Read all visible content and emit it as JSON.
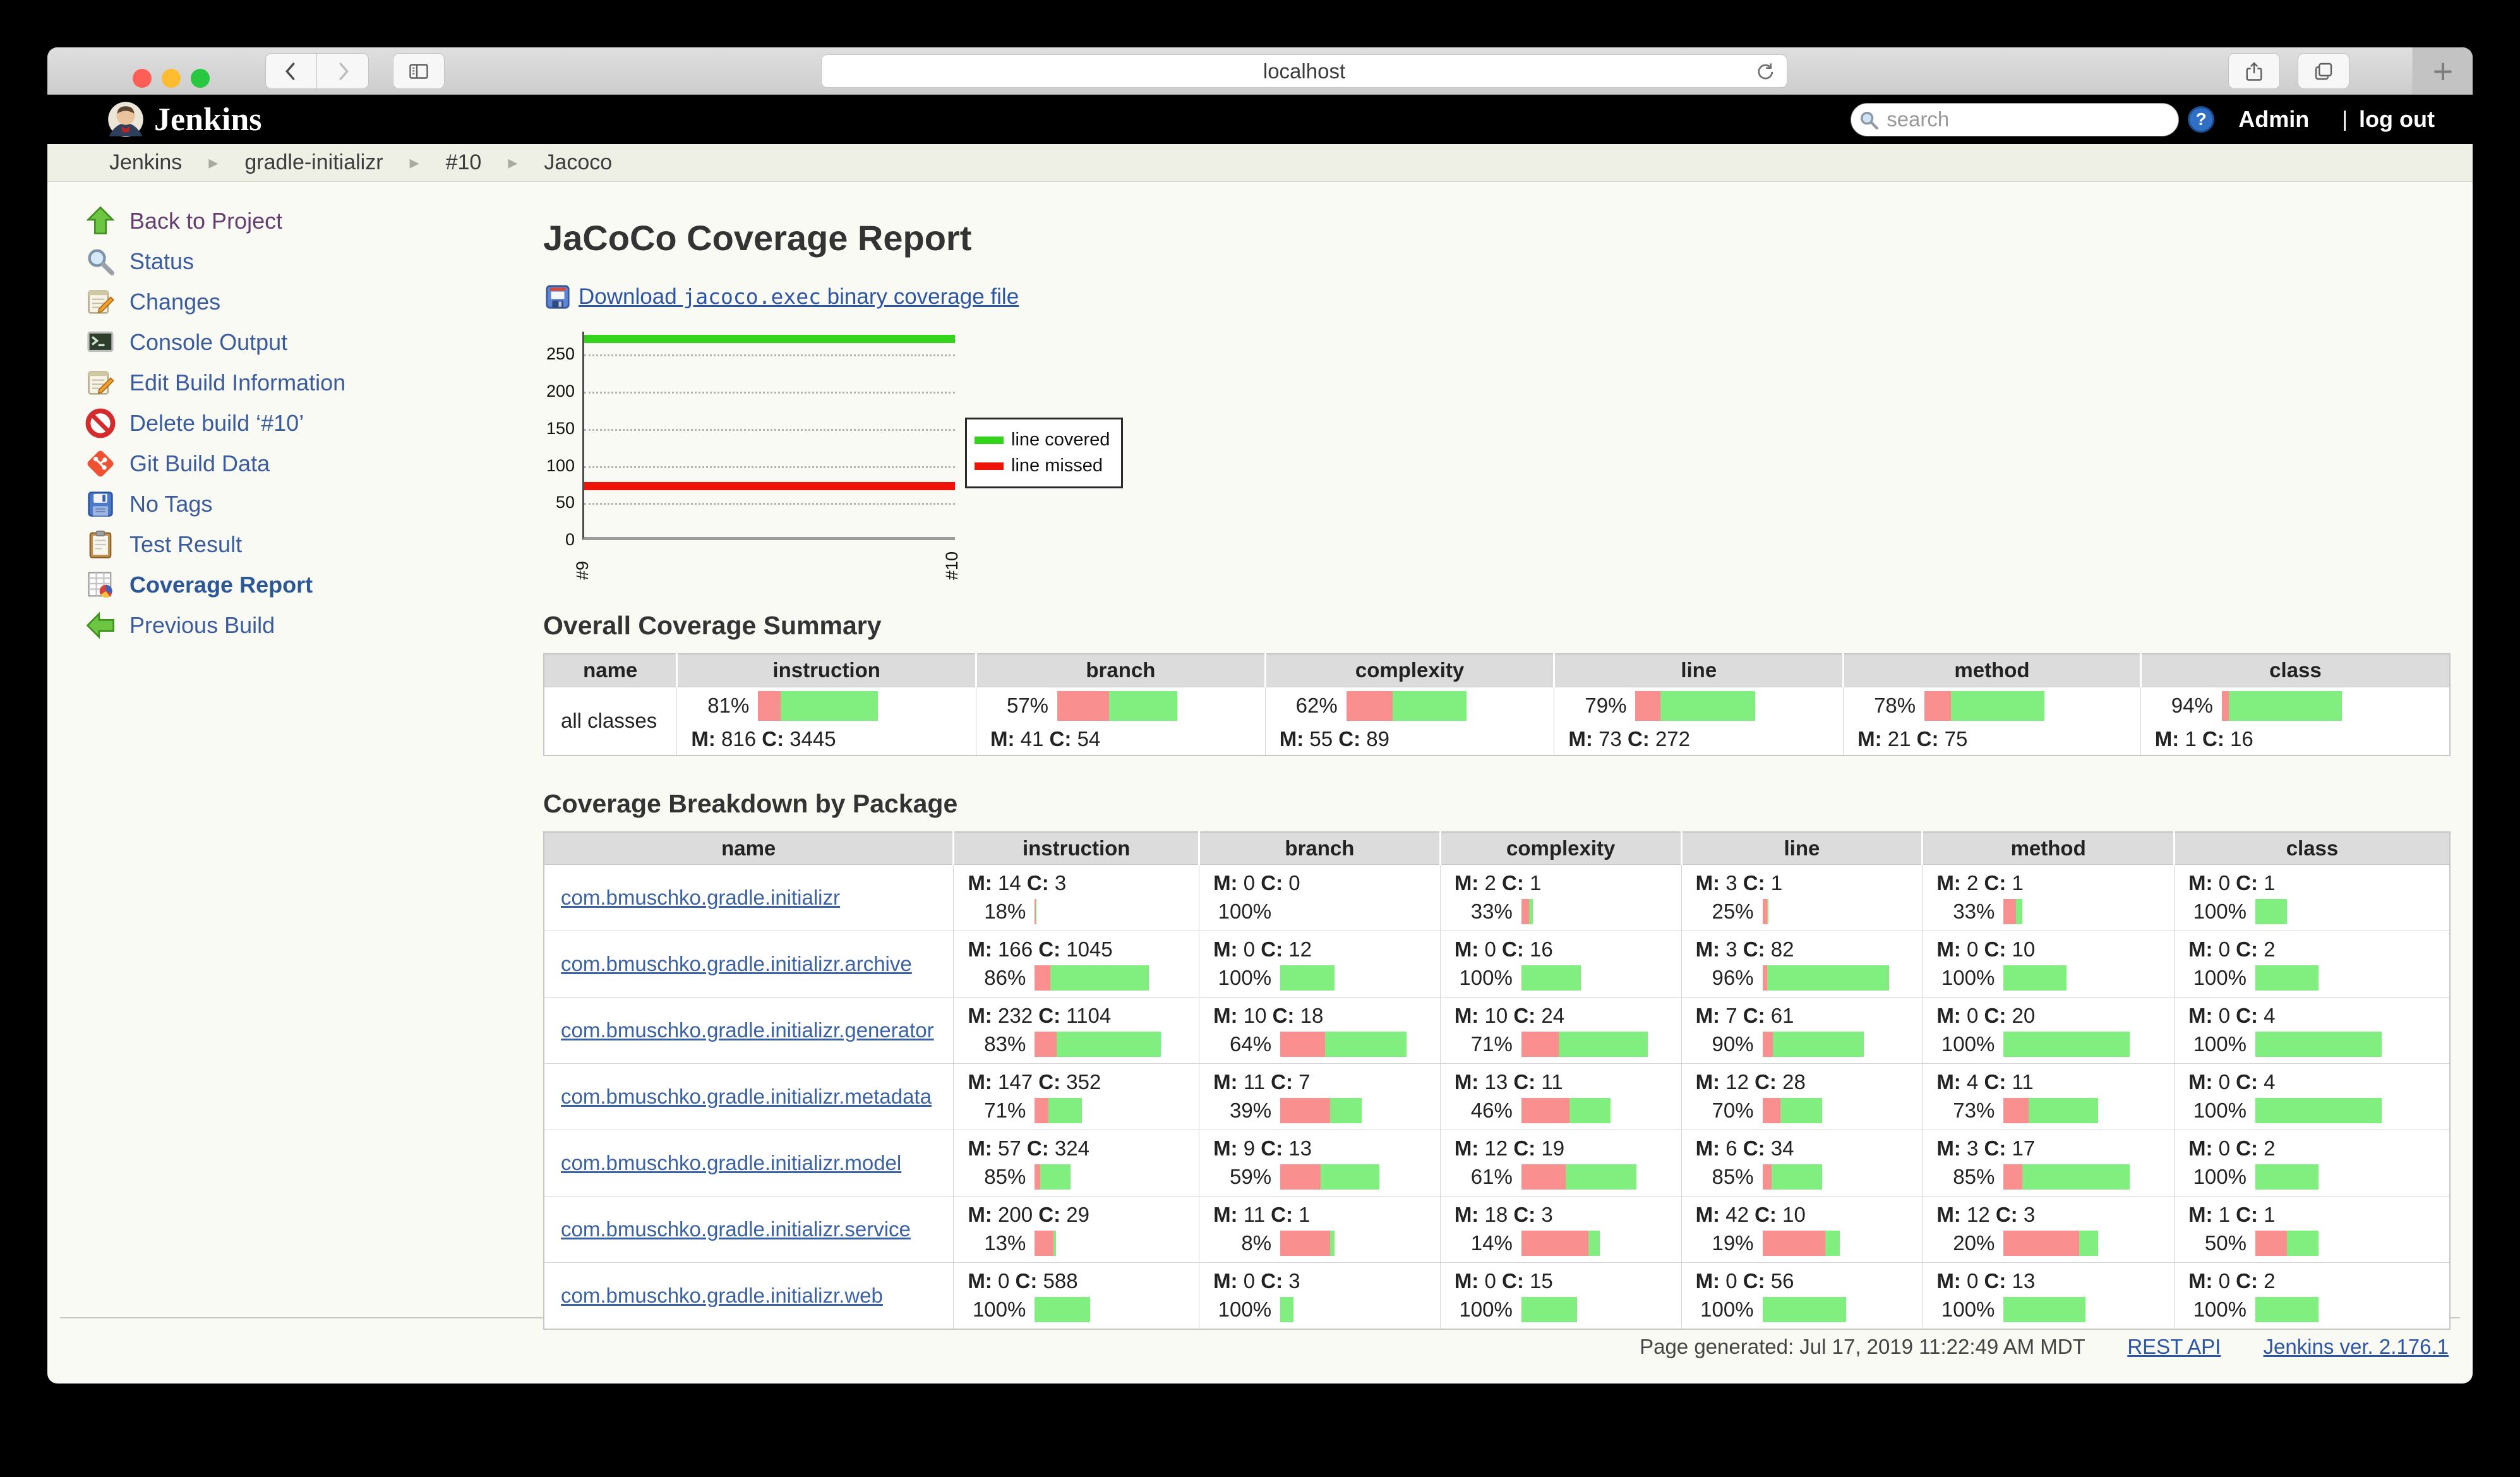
{
  "browser": {
    "url": "localhost"
  },
  "icons_text": {
    "plus": "+",
    "breadcrumb_sep": "▸",
    "help": "?"
  },
  "colors": {
    "traffic": [
      "#ff5f57",
      "#febc2e",
      "#28c840"
    ],
    "bar_missed": "#f98f8f",
    "bar_covered": "#80ef80",
    "link_blue": "#3b61a5"
  },
  "jenkins_header": {
    "brand": "Jenkins",
    "search_placeholder": "search",
    "admin": "Admin",
    "divider": "|",
    "logout": "log out"
  },
  "breadcrumb": {
    "items": [
      "Jenkins",
      "gradle-initializr",
      "#10",
      "Jacoco"
    ]
  },
  "sidebar": {
    "items": [
      {
        "slug": "back-to-project",
        "icon": "arrow-up",
        "label": "Back to Project",
        "style": "visited"
      },
      {
        "slug": "status",
        "icon": "magnifier",
        "label": "Status"
      },
      {
        "slug": "changes",
        "icon": "notepad",
        "label": "Changes"
      },
      {
        "slug": "console-output",
        "icon": "terminal",
        "label": "Console Output"
      },
      {
        "slug": "edit-build-information",
        "icon": "notepad",
        "label": "Edit Build Information"
      },
      {
        "slug": "delete-build",
        "icon": "no-entry",
        "label": "Delete build ‘#10’"
      },
      {
        "slug": "git-build-data",
        "icon": "git",
        "label": "Git Build Data"
      },
      {
        "slug": "no-tags",
        "icon": "floppy",
        "label": "No Tags"
      },
      {
        "slug": "test-result",
        "icon": "clipboard",
        "label": "Test Result"
      },
      {
        "slug": "coverage-report",
        "icon": "report",
        "label": "Coverage Report",
        "style": "bold"
      },
      {
        "slug": "previous-build",
        "icon": "arrow-left",
        "label": "Previous Build"
      }
    ]
  },
  "main": {
    "title": "JaCoCo Coverage Report",
    "download": {
      "prefix": "Download ",
      "code": "jacoco.exec",
      "suffix": " binary coverage file"
    },
    "summary_title": "Overall Coverage Summary",
    "breakdown_title": "Coverage Breakdown by Package",
    "m_label": "M:",
    "c_label": "C:",
    "columns": [
      "name",
      "instruction",
      "branch",
      "complexity",
      "line",
      "method",
      "class"
    ],
    "summary_row": {
      "name": "all classes",
      "instruction": {
        "pct": 81,
        "m": 816,
        "c": 3445
      },
      "branch": {
        "pct": 57,
        "m": 41,
        "c": 54
      },
      "complexity": {
        "pct": 62,
        "m": 55,
        "c": 89
      },
      "line": {
        "pct": 79,
        "m": 73,
        "c": 272
      },
      "method": {
        "pct": 78,
        "m": 21,
        "c": 75
      },
      "class": {
        "pct": 94,
        "m": 1,
        "c": 16
      }
    },
    "packages": [
      {
        "name": "com.bmuschko.gradle.initializr",
        "instruction": {
          "pct": 18,
          "m": 14,
          "c": 3
        },
        "branch": {
          "pct": 100,
          "m": 0,
          "c": 0
        },
        "complexity": {
          "pct": 33,
          "m": 2,
          "c": 1
        },
        "line": {
          "pct": 25,
          "m": 3,
          "c": 1
        },
        "method": {
          "pct": 33,
          "m": 2,
          "c": 1
        },
        "class": {
          "pct": 100,
          "m": 0,
          "c": 1
        }
      },
      {
        "name": "com.bmuschko.gradle.initializr.archive",
        "instruction": {
          "pct": 86,
          "m": 166,
          "c": 1045
        },
        "branch": {
          "pct": 100,
          "m": 0,
          "c": 12
        },
        "complexity": {
          "pct": 100,
          "m": 0,
          "c": 16
        },
        "line": {
          "pct": 96,
          "m": 3,
          "c": 82
        },
        "method": {
          "pct": 100,
          "m": 0,
          "c": 10
        },
        "class": {
          "pct": 100,
          "m": 0,
          "c": 2
        }
      },
      {
        "name": "com.bmuschko.gradle.initializr.generator",
        "instruction": {
          "pct": 83,
          "m": 232,
          "c": 1104
        },
        "branch": {
          "pct": 64,
          "m": 10,
          "c": 18
        },
        "complexity": {
          "pct": 71,
          "m": 10,
          "c": 24
        },
        "line": {
          "pct": 90,
          "m": 7,
          "c": 61
        },
        "method": {
          "pct": 100,
          "m": 0,
          "c": 20
        },
        "class": {
          "pct": 100,
          "m": 0,
          "c": 4
        }
      },
      {
        "name": "com.bmuschko.gradle.initializr.metadata",
        "instruction": {
          "pct": 71,
          "m": 147,
          "c": 352
        },
        "branch": {
          "pct": 39,
          "m": 11,
          "c": 7
        },
        "complexity": {
          "pct": 46,
          "m": 13,
          "c": 11
        },
        "line": {
          "pct": 70,
          "m": 12,
          "c": 28
        },
        "method": {
          "pct": 73,
          "m": 4,
          "c": 11
        },
        "class": {
          "pct": 100,
          "m": 0,
          "c": 4
        }
      },
      {
        "name": "com.bmuschko.gradle.initializr.model",
        "instruction": {
          "pct": 85,
          "m": 57,
          "c": 324
        },
        "branch": {
          "pct": 59,
          "m": 9,
          "c": 13
        },
        "complexity": {
          "pct": 61,
          "m": 12,
          "c": 19
        },
        "line": {
          "pct": 85,
          "m": 6,
          "c": 34
        },
        "method": {
          "pct": 85,
          "m": 3,
          "c": 17
        },
        "class": {
          "pct": 100,
          "m": 0,
          "c": 2
        }
      },
      {
        "name": "com.bmuschko.gradle.initializr.service",
        "instruction": {
          "pct": 13,
          "m": 200,
          "c": 29
        },
        "branch": {
          "pct": 8,
          "m": 11,
          "c": 1
        },
        "complexity": {
          "pct": 14,
          "m": 18,
          "c": 3
        },
        "line": {
          "pct": 19,
          "m": 42,
          "c": 10
        },
        "method": {
          "pct": 20,
          "m": 12,
          "c": 3
        },
        "class": {
          "pct": 50,
          "m": 1,
          "c": 1
        }
      },
      {
        "name": "com.bmuschko.gradle.initializr.web",
        "instruction": {
          "pct": 100,
          "m": 0,
          "c": 588
        },
        "branch": {
          "pct": 100,
          "m": 0,
          "c": 3
        },
        "complexity": {
          "pct": 100,
          "m": 0,
          "c": 15
        },
        "line": {
          "pct": 100,
          "m": 0,
          "c": 56
        },
        "method": {
          "pct": 100,
          "m": 0,
          "c": 13
        },
        "class": {
          "pct": 100,
          "m": 0,
          "c": 2
        }
      }
    ]
  },
  "chart_data": {
    "type": "line",
    "x": [
      "#9",
      "#10"
    ],
    "series": [
      {
        "name": "line covered",
        "color": "#35d41c",
        "values": [
          272,
          272
        ]
      },
      {
        "name": "line missed",
        "color": "#ee1409",
        "values": [
          73,
          73
        ]
      }
    ],
    "yticks": [
      0,
      50,
      100,
      150,
      200,
      250
    ],
    "ylim": [
      0,
      281
    ],
    "grid": "horizontal-dotted",
    "legend_position": "right"
  },
  "footer": {
    "generated": "Page generated: Jul 17, 2019 11:22:49 AM MDT",
    "rest_api": "REST API",
    "version": "Jenkins ver. 2.176.1"
  }
}
